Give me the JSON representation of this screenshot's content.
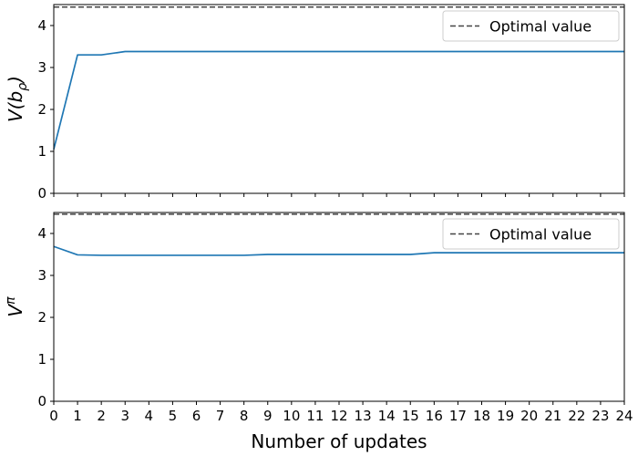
{
  "chart_data": [
    {
      "type": "line",
      "ylabel": "V(bρ)",
      "ylabel_base": "V(b",
      "ylabel_sub": "ρ",
      "ylabel_close": ")",
      "xlim": [
        0,
        24
      ],
      "ylim": [
        0,
        4.5
      ],
      "yticks": [
        0,
        1,
        2,
        3,
        4
      ],
      "x": [
        0,
        1,
        2,
        3,
        4,
        5,
        6,
        7,
        8,
        9,
        10,
        11,
        12,
        13,
        14,
        15,
        16,
        17,
        18,
        19,
        20,
        21,
        22,
        23,
        24
      ],
      "series": [
        {
          "values": [
            1.05,
            3.3,
            3.3,
            3.38,
            3.38,
            3.38,
            3.38,
            3.38,
            3.38,
            3.38,
            3.38,
            3.38,
            3.38,
            3.38,
            3.38,
            3.38,
            3.38,
            3.38,
            3.38,
            3.38,
            3.38,
            3.38,
            3.38,
            3.38,
            3.38
          ],
          "color": "#1f77b4"
        }
      ],
      "reference_line": {
        "name": "Optimal value",
        "value": 4.44,
        "color": "#444444",
        "style": "dashed"
      },
      "legend": "top-right",
      "grid": false,
      "show_xticklabels": false
    },
    {
      "type": "line",
      "ylabel": "Vπ",
      "ylabel_base": "V",
      "ylabel_sup": "π",
      "xlabel": "Number of updates",
      "xlim": [
        0,
        24
      ],
      "ylim": [
        0,
        4.5
      ],
      "yticks": [
        0,
        1,
        2,
        3,
        4
      ],
      "xticks": [
        0,
        1,
        2,
        3,
        4,
        5,
        6,
        7,
        8,
        9,
        10,
        11,
        12,
        13,
        14,
        15,
        16,
        17,
        18,
        19,
        20,
        21,
        22,
        23,
        24
      ],
      "x": [
        0,
        1,
        2,
        3,
        4,
        5,
        6,
        7,
        8,
        9,
        10,
        11,
        12,
        13,
        14,
        15,
        16,
        17,
        18,
        19,
        20,
        21,
        22,
        23,
        24
      ],
      "series": [
        {
          "values": [
            3.69,
            3.49,
            3.48,
            3.48,
            3.48,
            3.48,
            3.48,
            3.48,
            3.48,
            3.5,
            3.5,
            3.5,
            3.5,
            3.5,
            3.5,
            3.5,
            3.54,
            3.54,
            3.54,
            3.54,
            3.54,
            3.54,
            3.54,
            3.54,
            3.54
          ],
          "color": "#1f77b4"
        }
      ],
      "reference_line": {
        "name": "Optimal value",
        "value": 4.46,
        "color": "#444444",
        "style": "dashed"
      },
      "legend": "top-right",
      "grid": false,
      "show_xticklabels": true
    }
  ]
}
